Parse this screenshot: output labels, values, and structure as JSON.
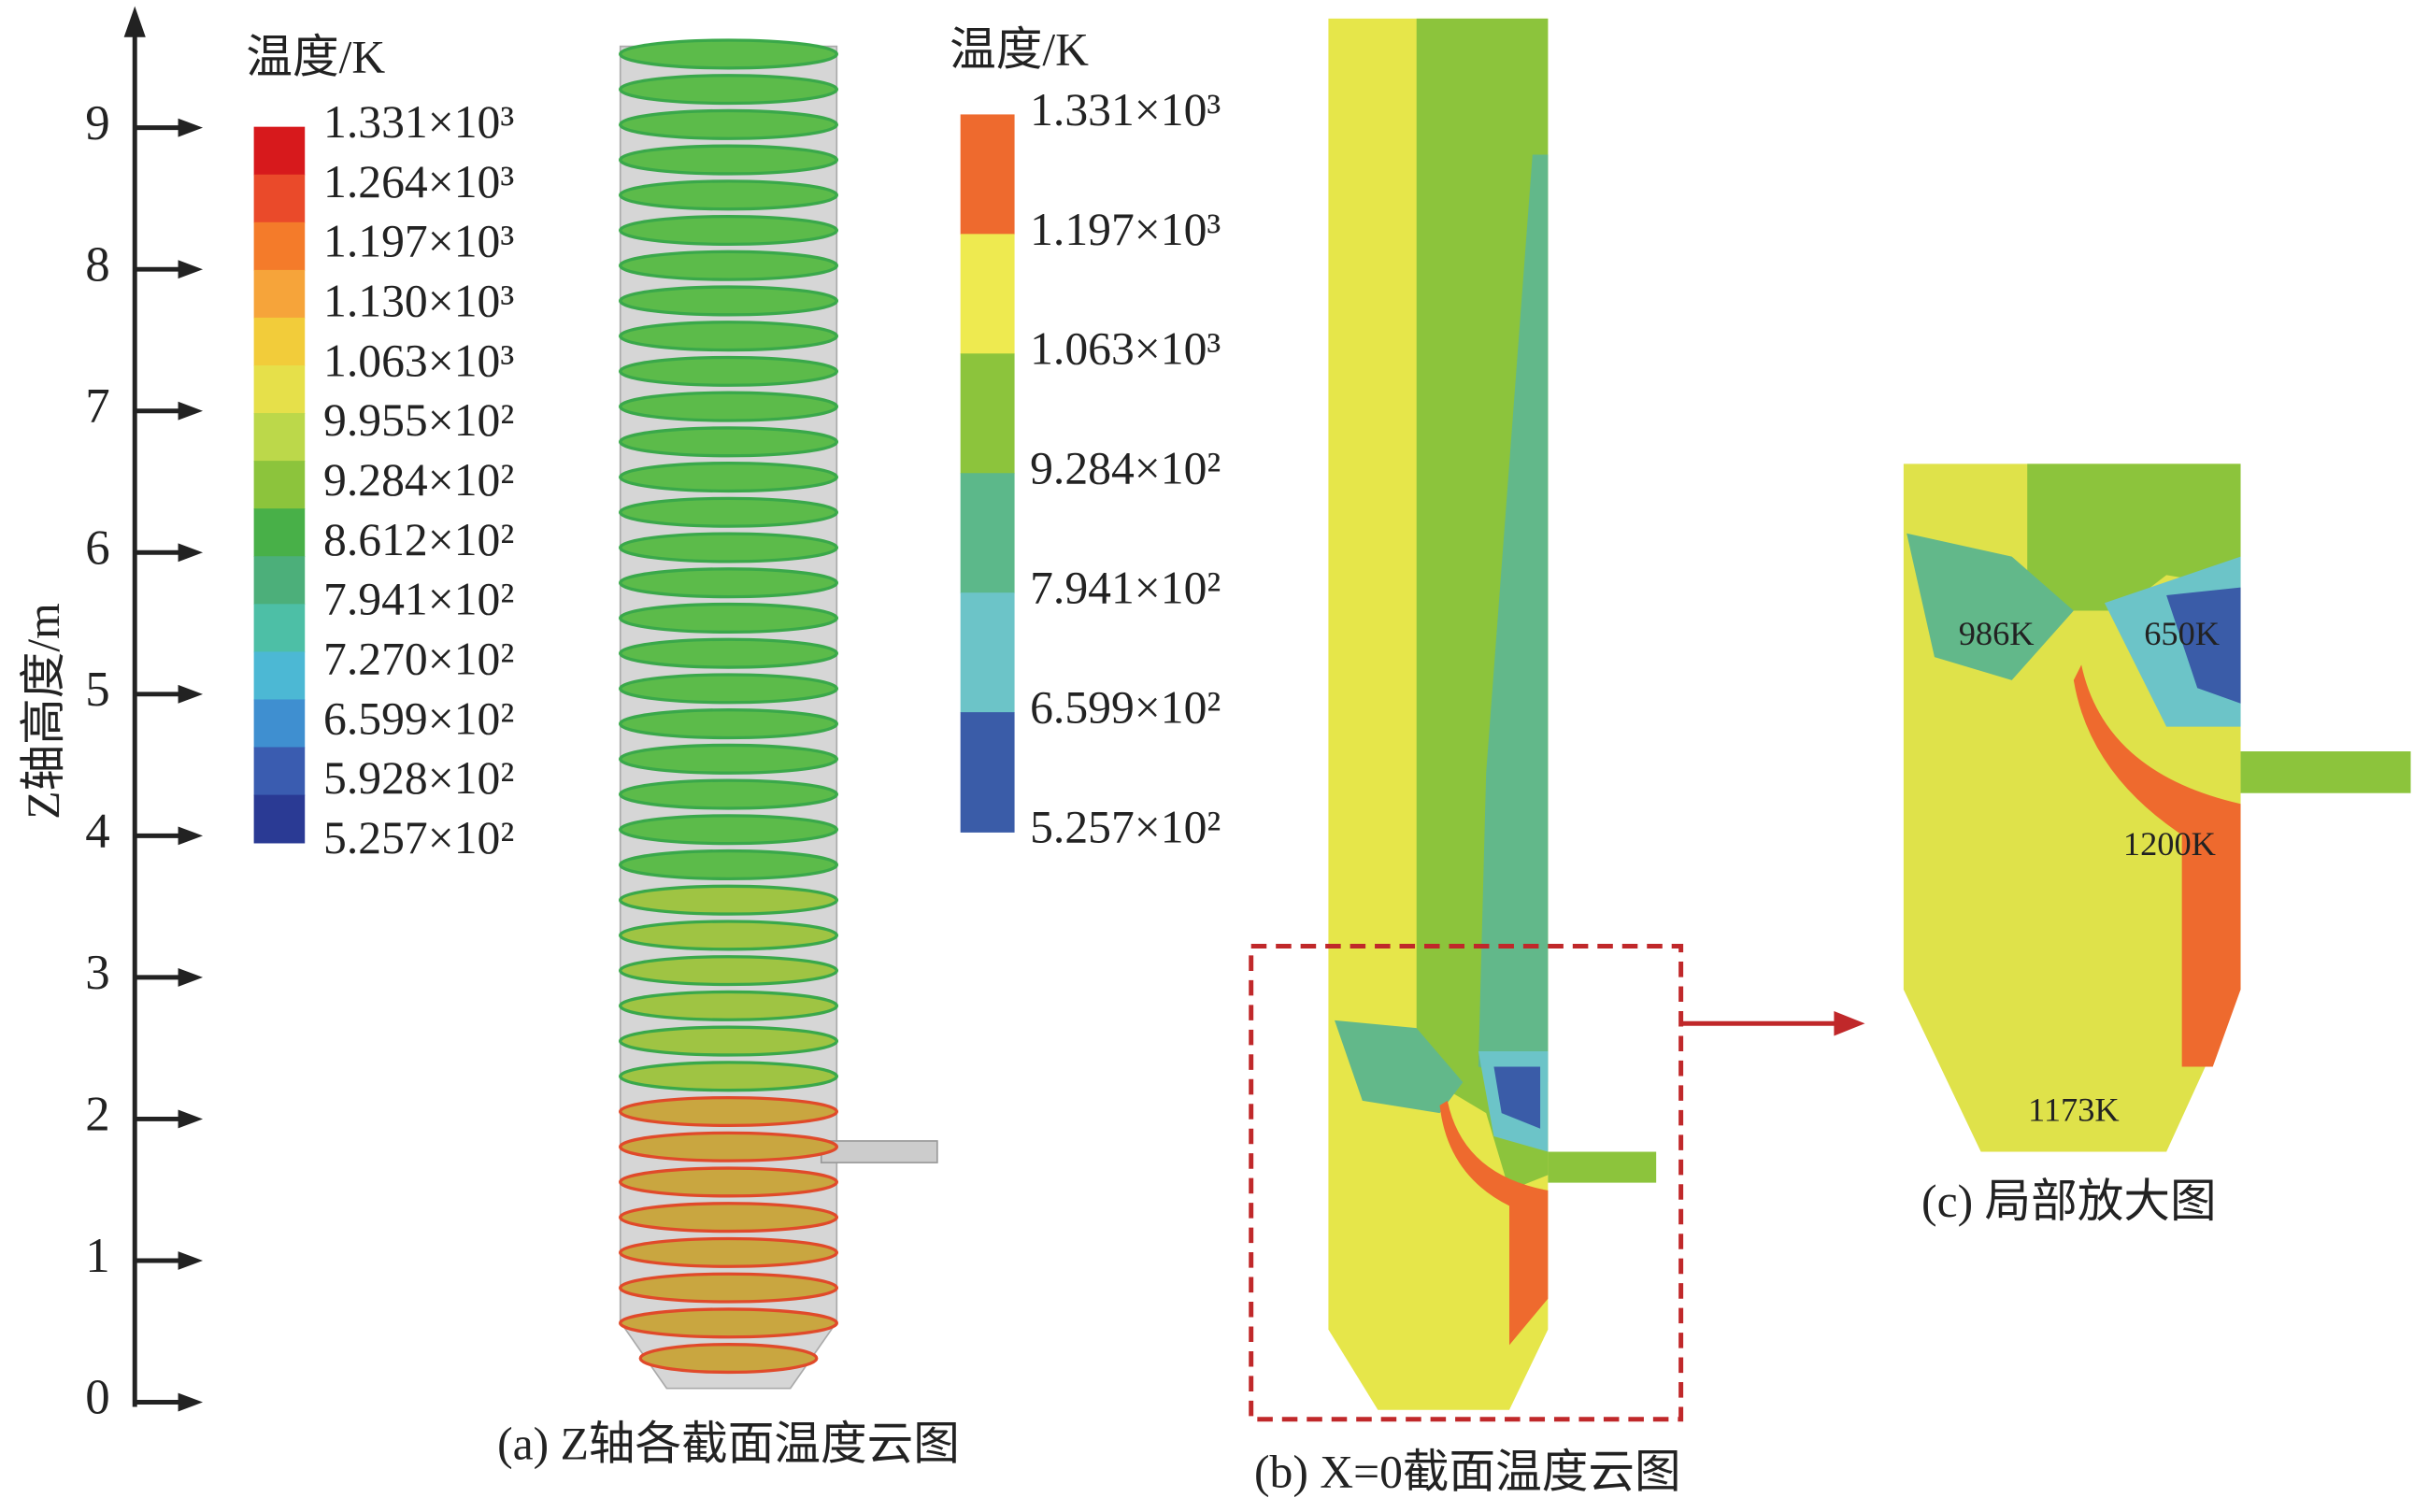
{
  "axis": {
    "label": "Z轴高度/m",
    "ticks": [
      0,
      1,
      2,
      3,
      4,
      5,
      6,
      7,
      8,
      9
    ]
  },
  "legend_a": {
    "title": "温度/K",
    "labels": [
      "1.331×10³",
      "1.264×10³",
      "1.197×10³",
      "1.130×10³",
      "1.063×10³",
      "9.955×10²",
      "9.284×10²",
      "8.612×10²",
      "7.941×10²",
      "7.270×10²",
      "6.599×10²",
      "5.928×10²",
      "5.257×10²"
    ]
  },
  "legend_b": {
    "title": "温度/K",
    "labels": [
      "1.331×10³",
      "1.197×10³",
      "1.063×10³",
      "9.284×10²",
      "7.941×10²",
      "6.599×10²",
      "5.257×10²"
    ]
  },
  "panel_c": {
    "annotations": [
      "986K",
      "650K",
      "1200K",
      "1173K"
    ]
  },
  "captions": [
    "(a) Z轴各截面温度云图",
    "(b) X=0截面温度云图",
    "(c) 局部放大图"
  ]
}
